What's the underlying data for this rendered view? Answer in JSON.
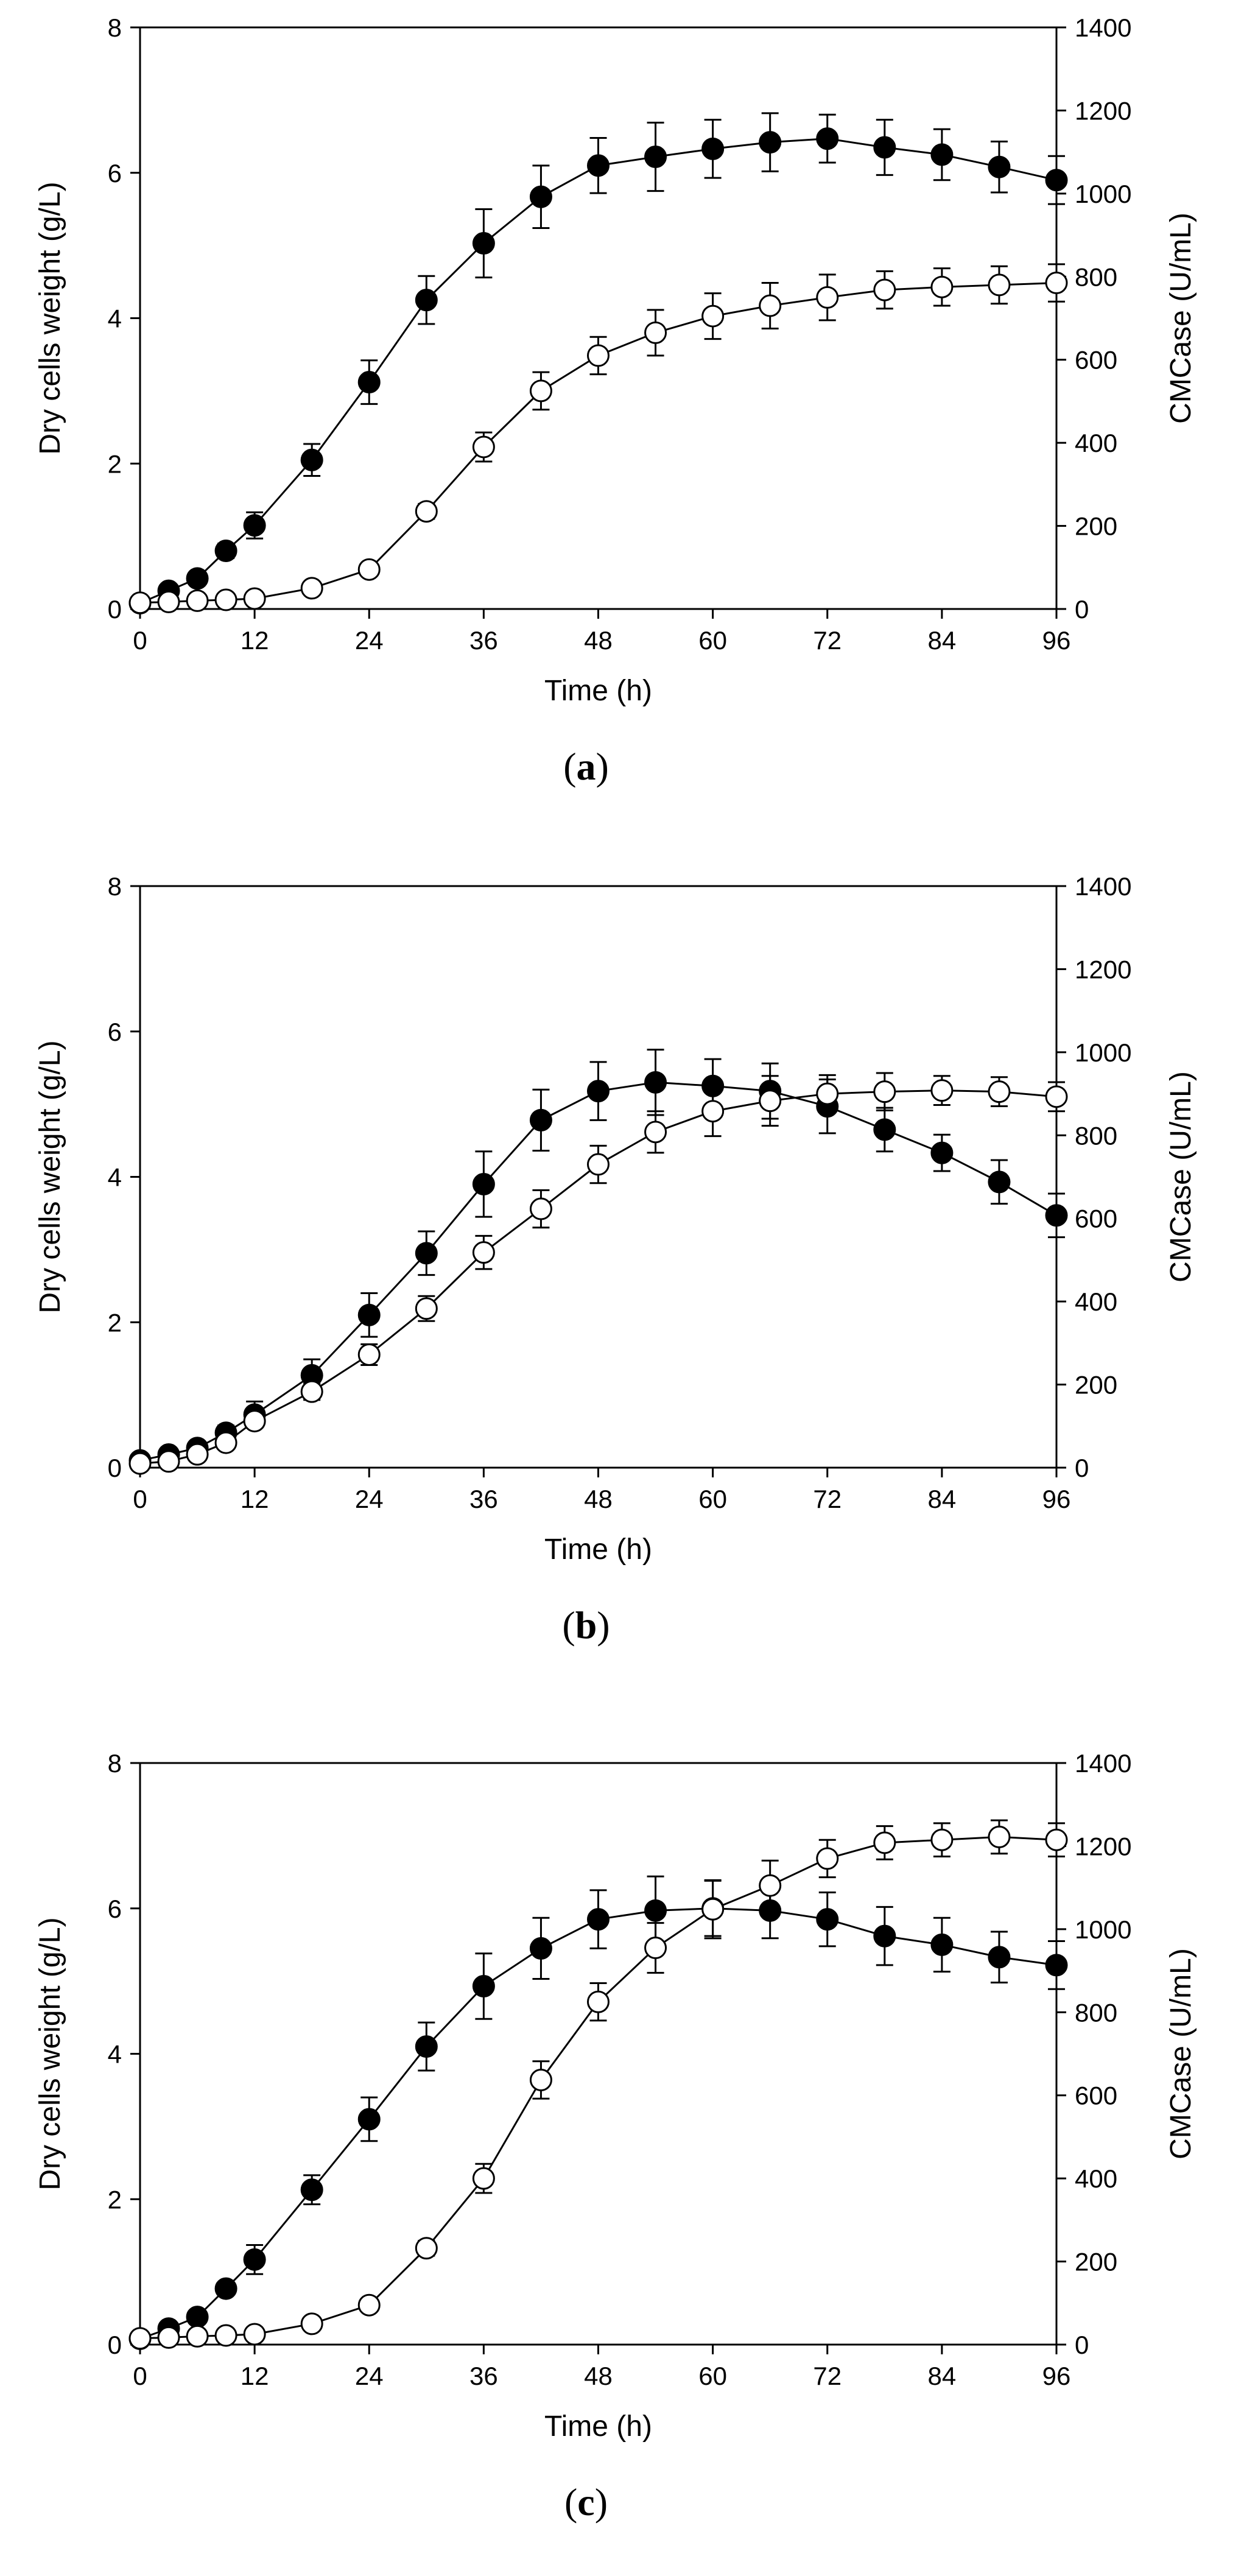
{
  "chart_data": [
    {
      "type": "line",
      "panel_label": "a",
      "title": "",
      "xlabel": "Time (h)",
      "ylabel": "Dry cells weight (g/L)",
      "y2label": "CMCase (U/mL)",
      "xlim": [
        0,
        96
      ],
      "ylim": [
        0,
        8
      ],
      "y2lim": [
        0,
        1400
      ],
      "xticks": [
        0,
        12,
        24,
        36,
        48,
        60,
        72,
        84,
        96
      ],
      "yticks": [
        0,
        2,
        4,
        6,
        8
      ],
      "y2ticks": [
        0,
        200,
        400,
        600,
        800,
        1000,
        1200,
        1400
      ],
      "grid": false,
      "x": [
        0,
        3,
        6,
        9,
        12,
        18,
        24,
        30,
        36,
        42,
        48,
        54,
        60,
        66,
        72,
        78,
        84,
        90,
        96
      ],
      "series": [
        {
          "name": "Dry cells weight",
          "axis": "left",
          "marker": "filled-circle",
          "values": [
            0.08,
            0.25,
            0.42,
            0.8,
            1.15,
            2.05,
            3.12,
            4.25,
            5.03,
            5.67,
            6.1,
            6.22,
            6.33,
            6.42,
            6.47,
            6.35,
            6.25,
            6.08,
            5.9
          ],
          "errors": [
            0.02,
            0.05,
            0.07,
            0.1,
            0.18,
            0.22,
            0.3,
            0.33,
            0.47,
            0.43,
            0.38,
            0.47,
            0.4,
            0.4,
            0.33,
            0.38,
            0.35,
            0.35,
            0.33
          ]
        },
        {
          "name": "CMCase",
          "axis": "right",
          "marker": "open-circle",
          "values": [
            15,
            17,
            20,
            22,
            25,
            50,
            95,
            235,
            390,
            525,
            610,
            665,
            705,
            730,
            750,
            768,
            775,
            780,
            785
          ],
          "errors": [
            2,
            3,
            3,
            3,
            4,
            6,
            10,
            18,
            35,
            45,
            45,
            55,
            55,
            55,
            55,
            45,
            45,
            45,
            45
          ]
        }
      ]
    },
    {
      "type": "line",
      "panel_label": "b",
      "title": "",
      "xlabel": "Time (h)",
      "ylabel": "Dry cells weight (g/L)",
      "y2label": "CMCase (U/mL)",
      "xlim": [
        0,
        96
      ],
      "ylim": [
        0,
        8
      ],
      "y2lim": [
        0,
        1400
      ],
      "xticks": [
        0,
        12,
        24,
        36,
        48,
        60,
        72,
        84,
        96
      ],
      "yticks": [
        0,
        2,
        4,
        6,
        8
      ],
      "y2ticks": [
        0,
        200,
        400,
        600,
        800,
        1000,
        1200,
        1400
      ],
      "grid": false,
      "x": [
        0,
        3,
        6,
        9,
        12,
        18,
        24,
        30,
        36,
        42,
        48,
        54,
        60,
        66,
        72,
        78,
        84,
        90,
        96
      ],
      "series": [
        {
          "name": "Dry cells weight",
          "axis": "left",
          "marker": "filled-circle",
          "values": [
            0.1,
            0.18,
            0.27,
            0.48,
            0.73,
            1.27,
            2.1,
            2.95,
            3.9,
            4.78,
            5.18,
            5.3,
            5.25,
            5.18,
            4.97,
            4.65,
            4.33,
            3.93,
            3.47
          ],
          "errors": [
            0.03,
            0.04,
            0.06,
            0.1,
            0.18,
            0.22,
            0.3,
            0.3,
            0.45,
            0.42,
            0.4,
            0.45,
            0.37,
            0.38,
            0.37,
            0.3,
            0.25,
            0.3,
            0.3
          ]
        },
        {
          "name": "CMCase",
          "axis": "right",
          "marker": "open-circle",
          "values": [
            10,
            15,
            32,
            60,
            112,
            183,
            272,
            383,
            518,
            623,
            730,
            808,
            858,
            883,
            900,
            905,
            908,
            905,
            893
          ],
          "errors": [
            2,
            3,
            5,
            8,
            15,
            20,
            25,
            30,
            40,
            45,
            45,
            50,
            60,
            60,
            45,
            45,
            35,
            35,
            35
          ]
        }
      ]
    },
    {
      "type": "line",
      "panel_label": "c",
      "title": "",
      "xlabel": "Time (h)",
      "ylabel": "Dry cells weight (g/L)",
      "y2label": "CMCase (U/mL)",
      "xlim": [
        0,
        96
      ],
      "ylim": [
        0,
        8
      ],
      "y2lim": [
        0,
        1400
      ],
      "xticks": [
        0,
        12,
        24,
        36,
        48,
        60,
        72,
        84,
        96
      ],
      "yticks": [
        0,
        2,
        4,
        6,
        8
      ],
      "y2ticks": [
        0,
        200,
        400,
        600,
        800,
        1000,
        1200,
        1400
      ],
      "grid": false,
      "x": [
        0,
        3,
        6,
        9,
        12,
        18,
        24,
        30,
        36,
        42,
        48,
        54,
        60,
        66,
        72,
        78,
        84,
        90,
        96
      ],
      "series": [
        {
          "name": "Dry cells weight",
          "axis": "left",
          "marker": "filled-circle",
          "values": [
            0.08,
            0.22,
            0.38,
            0.77,
            1.17,
            2.13,
            3.1,
            4.1,
            4.93,
            5.45,
            5.85,
            5.97,
            6.0,
            5.97,
            5.85,
            5.62,
            5.5,
            5.33,
            5.22
          ],
          "errors": [
            0.02,
            0.04,
            0.06,
            0.08,
            0.2,
            0.2,
            0.3,
            0.33,
            0.45,
            0.42,
            0.4,
            0.47,
            0.38,
            0.38,
            0.37,
            0.4,
            0.37,
            0.35,
            0.33
          ]
        },
        {
          "name": "CMCase",
          "axis": "right",
          "marker": "open-circle",
          "values": [
            15,
            17,
            20,
            22,
            25,
            50,
            95,
            232,
            400,
            637,
            825,
            955,
            1048,
            1105,
            1170,
            1208,
            1215,
            1222,
            1215
          ],
          "errors": [
            2,
            3,
            3,
            3,
            4,
            6,
            10,
            18,
            35,
            45,
            45,
            60,
            70,
            60,
            45,
            40,
            40,
            40,
            40
          ]
        }
      ]
    }
  ]
}
